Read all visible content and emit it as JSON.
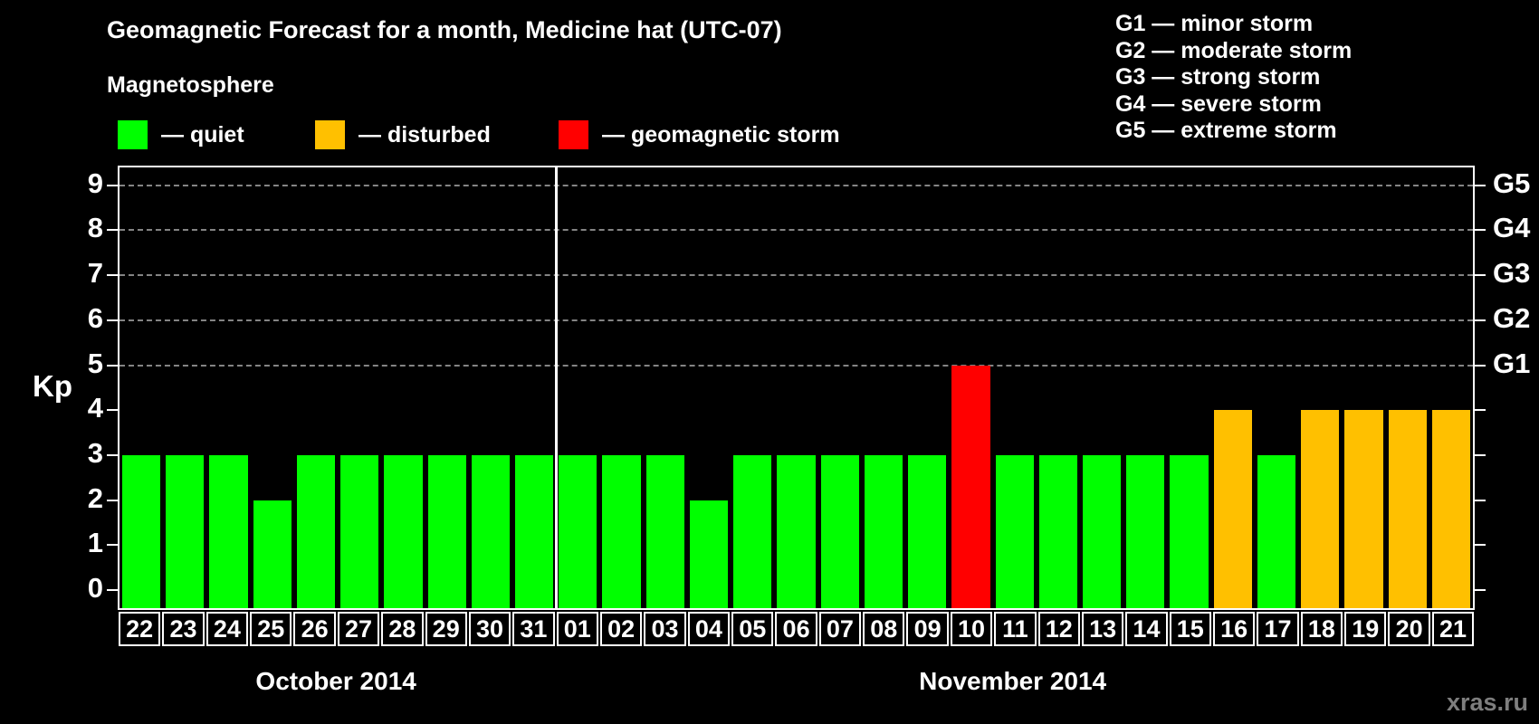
{
  "title": "Geomagnetic Forecast for a month, Medicine hat (UTC-07)",
  "kp_axis_label": "Kp",
  "watermark": "xras.ru",
  "magnetosphere_legend": {
    "heading": "Magnetosphere",
    "items": [
      {
        "label": "— quiet",
        "status": "quiet",
        "color": "#00ff00"
      },
      {
        "label": "— disturbed",
        "status": "disturbed",
        "color": "#ffc000"
      },
      {
        "label": "— geomagnetic storm",
        "status": "storm",
        "color": "#ff0000"
      }
    ]
  },
  "gscale_legend": {
    "items": [
      "G1 — minor storm",
      "G2 — moderate storm",
      "G3 — strong storm",
      "G4 — severe storm",
      "G5 — extreme storm"
    ]
  },
  "chart_data": {
    "type": "bar",
    "title": "Geomagnetic Forecast for a month, Medicine hat (UTC-07)",
    "ylabel": "Kp",
    "ylim": [
      0,
      9
    ],
    "y_ticks": [
      0,
      1,
      2,
      3,
      4,
      5,
      6,
      7,
      8,
      9
    ],
    "gridlines_at": [
      5,
      6,
      7,
      8,
      9
    ],
    "grid": "dashed-horizontal",
    "right_axis": [
      {
        "kp": 5,
        "label": "G1"
      },
      {
        "kp": 6,
        "label": "G2"
      },
      {
        "kp": 7,
        "label": "G3"
      },
      {
        "kp": 8,
        "label": "G4"
      },
      {
        "kp": 9,
        "label": "G5"
      }
    ],
    "status_colors": {
      "quiet": "#00ff00",
      "disturbed": "#ffc000",
      "storm": "#ff0000"
    },
    "months": [
      {
        "label": "October 2014",
        "days": [
          {
            "day": "22",
            "kp": 3,
            "status": "quiet"
          },
          {
            "day": "23",
            "kp": 3,
            "status": "quiet"
          },
          {
            "day": "24",
            "kp": 3,
            "status": "quiet"
          },
          {
            "day": "25",
            "kp": 2,
            "status": "quiet"
          },
          {
            "day": "26",
            "kp": 3,
            "status": "quiet"
          },
          {
            "day": "27",
            "kp": 3,
            "status": "quiet"
          },
          {
            "day": "28",
            "kp": 3,
            "status": "quiet"
          },
          {
            "day": "29",
            "kp": 3,
            "status": "quiet"
          },
          {
            "day": "30",
            "kp": 3,
            "status": "quiet"
          },
          {
            "day": "31",
            "kp": 3,
            "status": "quiet"
          }
        ]
      },
      {
        "label": "November 2014",
        "days": [
          {
            "day": "01",
            "kp": 3,
            "status": "quiet"
          },
          {
            "day": "02",
            "kp": 3,
            "status": "quiet"
          },
          {
            "day": "03",
            "kp": 3,
            "status": "quiet"
          },
          {
            "day": "04",
            "kp": 2,
            "status": "quiet"
          },
          {
            "day": "05",
            "kp": 3,
            "status": "quiet"
          },
          {
            "day": "06",
            "kp": 3,
            "status": "quiet"
          },
          {
            "day": "07",
            "kp": 3,
            "status": "quiet"
          },
          {
            "day": "08",
            "kp": 3,
            "status": "quiet"
          },
          {
            "day": "09",
            "kp": 3,
            "status": "quiet"
          },
          {
            "day": "10",
            "kp": 5,
            "status": "storm"
          },
          {
            "day": "11",
            "kp": 3,
            "status": "quiet"
          },
          {
            "day": "12",
            "kp": 3,
            "status": "quiet"
          },
          {
            "day": "13",
            "kp": 3,
            "status": "quiet"
          },
          {
            "day": "14",
            "kp": 3,
            "status": "quiet"
          },
          {
            "day": "15",
            "kp": 3,
            "status": "quiet"
          },
          {
            "day": "16",
            "kp": 4,
            "status": "disturbed"
          },
          {
            "day": "17",
            "kp": 3,
            "status": "quiet"
          },
          {
            "day": "18",
            "kp": 4,
            "status": "disturbed"
          },
          {
            "day": "19",
            "kp": 4,
            "status": "disturbed"
          },
          {
            "day": "20",
            "kp": 4,
            "status": "disturbed"
          },
          {
            "day": "21",
            "kp": 4,
            "status": "disturbed"
          }
        ]
      }
    ]
  }
}
